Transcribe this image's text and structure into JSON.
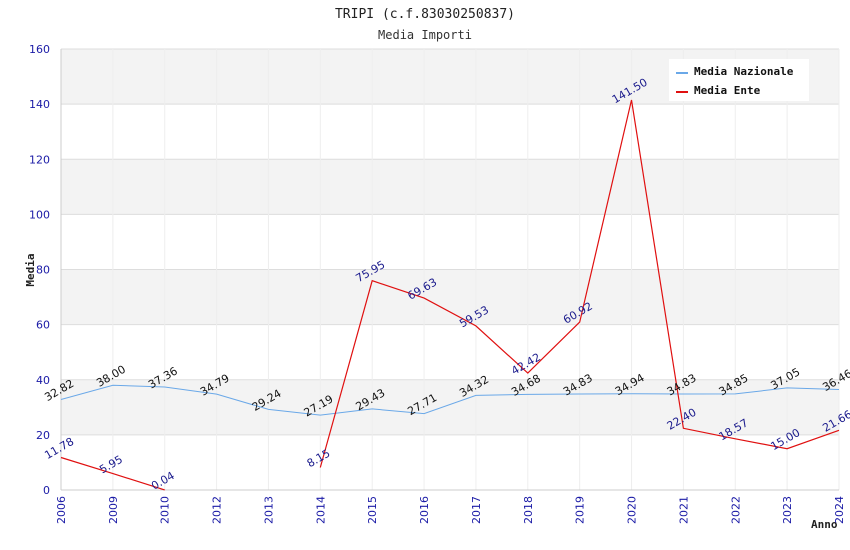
{
  "chart_data": {
    "type": "line",
    "title": "TRIPI (c.f.83030250837)",
    "subtitle": "Media Importi",
    "xlabel": "Anno",
    "ylabel": "Media",
    "ylim": [
      0,
      160
    ],
    "yticks": [
      "0",
      "20",
      "40",
      "60",
      "80",
      "100",
      "120",
      "140",
      "160"
    ],
    "categories": [
      "2006",
      "2009",
      "2010",
      "2012",
      "2013",
      "2014",
      "2015",
      "2016",
      "2017",
      "2018",
      "2019",
      "2020",
      "2021",
      "2022",
      "2023",
      "2024"
    ],
    "legend_position": "top-right",
    "series": [
      {
        "name": "Media Nazionale",
        "color": "#6aa8e8",
        "values": [
          32.82,
          38.0,
          37.36,
          34.79,
          29.24,
          27.19,
          29.43,
          27.71,
          34.32,
          34.68,
          34.83,
          34.94,
          34.83,
          34.85,
          37.05,
          36.46
        ],
        "labels": [
          "32.82",
          "38.00",
          "37.36",
          "34.79",
          "29.24",
          "27.19",
          "29.43",
          "27.71",
          "34.32",
          "34.68",
          "34.83",
          "34.94",
          "34.83",
          "34.85",
          "37.05",
          "36.46"
        ]
      },
      {
        "name": "Media Ente",
        "color": "#e01010",
        "values": [
          11.78,
          5.95,
          0.04,
          null,
          null,
          8.15,
          75.95,
          69.63,
          59.53,
          42.42,
          60.92,
          141.5,
          22.4,
          18.57,
          15.0,
          21.66
        ],
        "labels": [
          "11.78",
          "5.95",
          "0.04",
          "",
          "",
          "8.15",
          "75.95",
          "69.63",
          "59.53",
          "42.42",
          "60.92",
          "141.50",
          "22.40",
          "18.57",
          "15.00",
          "21.66"
        ]
      }
    ]
  }
}
